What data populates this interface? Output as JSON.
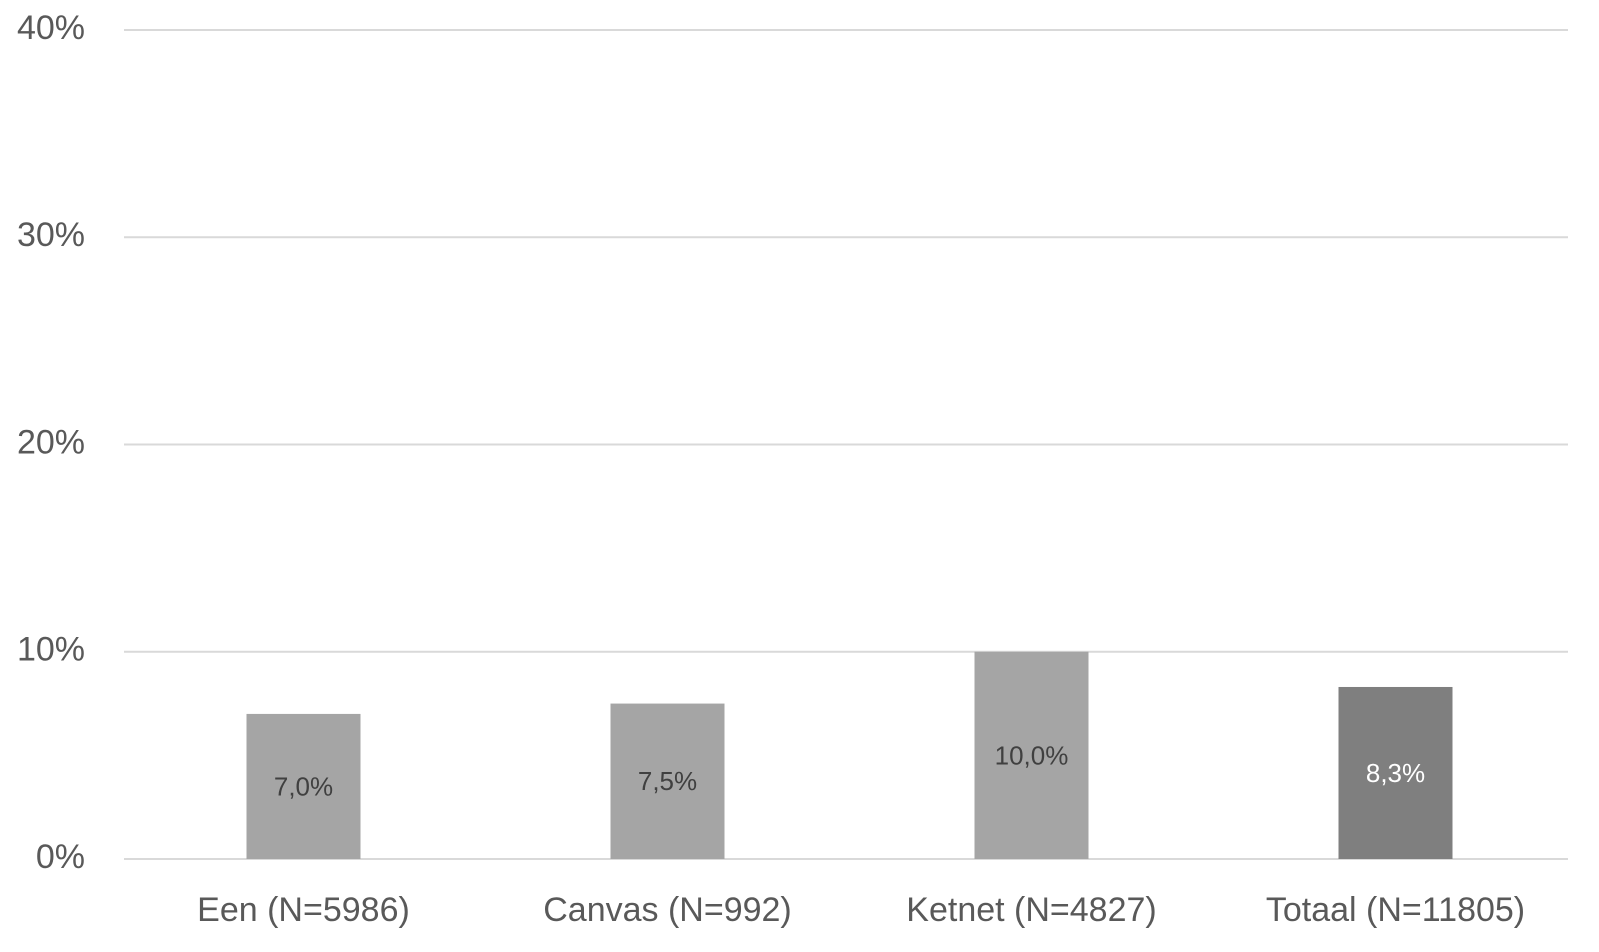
{
  "chart_data": {
    "type": "bar",
    "categories": [
      "Een (N=5986)",
      "Canvas (N=992)",
      "Ketnet (N=4827)",
      "Totaal (N=11805)"
    ],
    "values": [
      7.0,
      7.5,
      10.0,
      8.3
    ],
    "value_labels": [
      "7,0%",
      "7,5%",
      "10,0%",
      "8,3%"
    ],
    "colors": [
      "#a5a5a5",
      "#a5a5a5",
      "#a5a5a5",
      "#7f7f7f"
    ],
    "value_label_colors": [
      "#404040",
      "#404040",
      "#404040",
      "#ffffff"
    ],
    "ylim": [
      0,
      40
    ],
    "yticks": [
      {
        "value": 0,
        "label": "0%"
      },
      {
        "value": 10,
        "label": "10%"
      },
      {
        "value": 20,
        "label": "20%"
      },
      {
        "value": 30,
        "label": "30%"
      },
      {
        "value": 40,
        "label": "40%"
      }
    ],
    "grid": true
  }
}
